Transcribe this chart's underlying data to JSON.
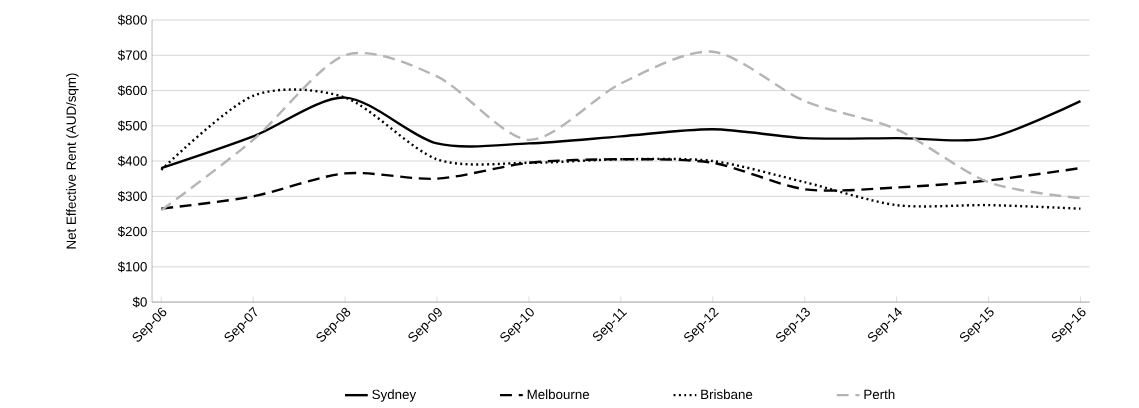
{
  "chart_data": {
    "type": "line",
    "ylabel": "Net Effective Rent (AUD/sqm)",
    "categories": [
      "Sep-06",
      "Sep-07",
      "Sep-08",
      "Sep-09",
      "Sep-10",
      "Sep-11",
      "Sep-12",
      "Sep-13",
      "Sep-14",
      "Sep-15",
      "Sep-16"
    ],
    "series": [
      {
        "name": "Sydney",
        "color": "#000000",
        "line_style": "solid",
        "values": [
          380,
          470,
          580,
          450,
          450,
          470,
          490,
          465,
          465,
          465,
          570
        ]
      },
      {
        "name": "Melbourne",
        "color": "#000000",
        "line_style": "dashed",
        "values": [
          265,
          300,
          365,
          350,
          395,
          405,
          395,
          320,
          325,
          345,
          380
        ]
      },
      {
        "name": "Brisbane",
        "color": "#000000",
        "line_style": "dotted",
        "values": [
          375,
          585,
          580,
          405,
          395,
          405,
          400,
          340,
          275,
          275,
          265
        ]
      },
      {
        "name": "Perth",
        "color": "#b4b4b4",
        "line_style": "dashed",
        "values": [
          260,
          460,
          700,
          640,
          460,
          620,
          710,
          570,
          490,
          340,
          295
        ]
      }
    ],
    "ylim": [
      0,
      800
    ],
    "yticks": [
      {
        "value": 0,
        "label": "$0"
      },
      {
        "value": 100,
        "label": "$100"
      },
      {
        "value": 200,
        "label": "$200"
      },
      {
        "value": 300,
        "label": "$300"
      },
      {
        "value": 400,
        "label": "$400"
      },
      {
        "value": 500,
        "label": "$500"
      },
      {
        "value": 600,
        "label": "$600"
      },
      {
        "value": 700,
        "label": "$700"
      },
      {
        "value": 800,
        "label": "$800"
      }
    ],
    "grid": "y",
    "legend": "bottom",
    "marker": "none"
  }
}
